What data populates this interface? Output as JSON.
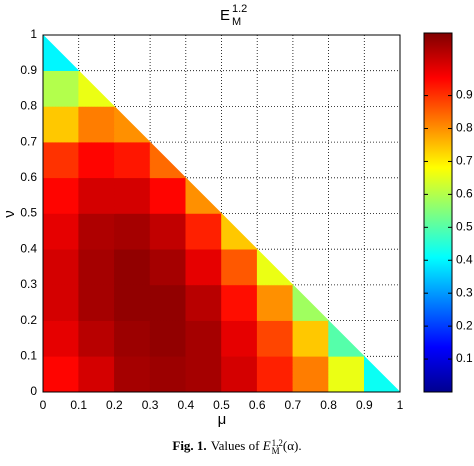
{
  "chart_data": {
    "type": "heatmap",
    "title": "E",
    "title_subscript": "M",
    "title_superscript": "1.2",
    "x_label": "μ",
    "y_label": "ν",
    "xlim": [
      0,
      1
    ],
    "ylim": [
      0,
      1
    ],
    "xticks": [
      0,
      0.1,
      0.2,
      0.3,
      0.4,
      0.5,
      0.6,
      0.7,
      0.8,
      0.9,
      1
    ],
    "yticks": [
      0,
      0.1,
      0.2,
      0.3,
      0.4,
      0.5,
      0.6,
      0.7,
      0.8,
      0.9,
      1
    ],
    "grid": true,
    "colormap": "jet",
    "clim": [
      0,
      1.09
    ],
    "cticks": [
      0.1,
      0.2,
      0.3,
      0.4,
      0.5,
      0.6,
      0.7,
      0.8,
      0.9
    ],
    "values": [
      [
        0.95,
        1.0,
        1.05,
        1.06,
        1.05,
        1.0,
        0.92,
        0.82,
        0.66,
        0.42
      ],
      [
        0.98,
        1.03,
        1.06,
        1.07,
        1.05,
        0.98,
        0.88,
        0.74,
        0.5
      ],
      [
        1.0,
        1.05,
        1.07,
        1.07,
        1.03,
        0.94,
        0.8,
        0.58
      ],
      [
        1.0,
        1.05,
        1.07,
        1.05,
        0.98,
        0.86,
        0.66
      ],
      [
        0.98,
        1.04,
        1.05,
        1.02,
        0.92,
        0.74
      ],
      [
        0.95,
        1.0,
        1.0,
        0.95,
        0.8
      ],
      [
        0.9,
        0.95,
        0.93,
        0.84
      ],
      [
        0.74,
        0.82,
        0.8
      ],
      [
        0.6,
        0.66
      ],
      [
        0.4
      ]
    ]
  },
  "caption": {
    "label": "Fig. 1.",
    "text": "Values of",
    "symbol": "E",
    "subscript": "M",
    "superscript": "1,2",
    "argument": "(α)."
  }
}
